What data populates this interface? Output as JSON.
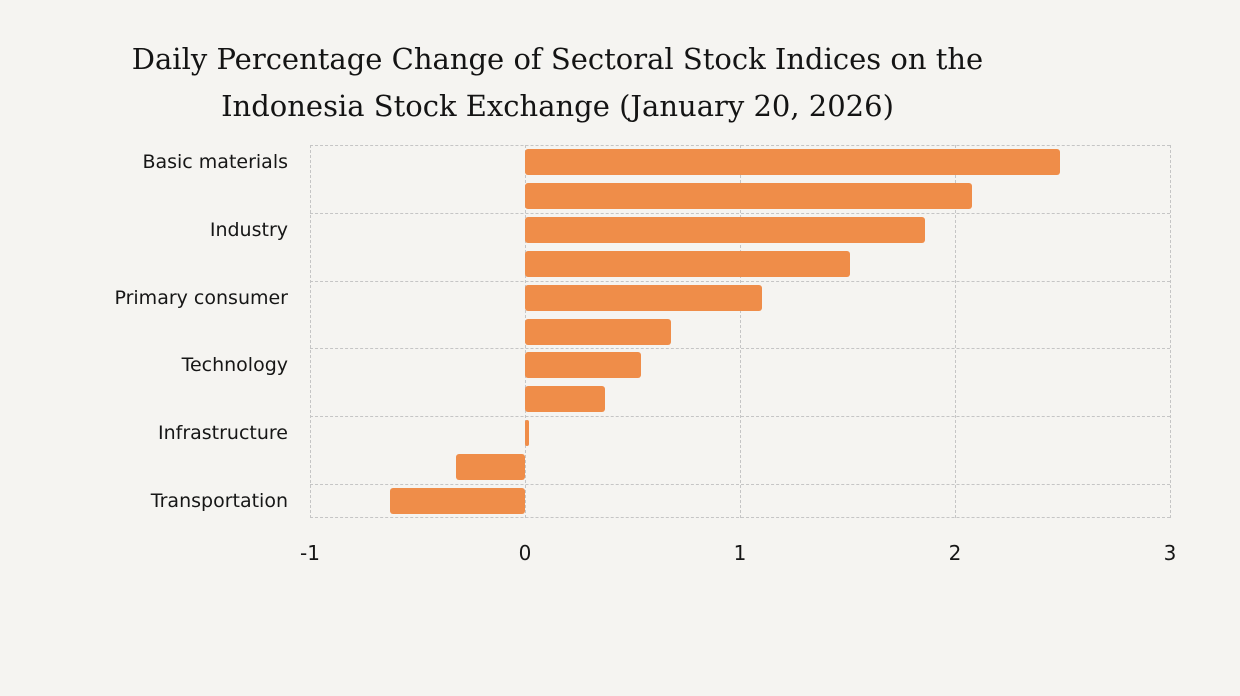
{
  "page": {
    "background_color": "#f5f4f1"
  },
  "chart_data": {
    "type": "bar",
    "orientation": "horizontal",
    "title_line1": "Daily Percentage Change of Sectoral Stock Indices on the",
    "title_line2": "Indonesia Stock Exchange (January 20, 2026)",
    "xlabel": "",
    "ylabel": "",
    "xlim": [
      -1,
      3
    ],
    "x_ticks": [
      {
        "label": "-1",
        "value": -1
      },
      {
        "label": "0",
        "value": 0
      },
      {
        "label": "1",
        "value": 1
      },
      {
        "label": "2",
        "value": 2
      },
      {
        "label": "3",
        "value": 3
      }
    ],
    "bars": [
      {
        "label": "Basic materials",
        "value": 2.49
      },
      {
        "label": "",
        "value": 2.08
      },
      {
        "label": "Industry",
        "value": 1.86
      },
      {
        "label": "",
        "value": 1.51
      },
      {
        "label": "Primary consumer",
        "value": 1.1
      },
      {
        "label": "",
        "value": 0.68
      },
      {
        "label": "Technology",
        "value": 0.54
      },
      {
        "label": "",
        "value": 0.37
      },
      {
        "label": "Infrastructure",
        "value": 0.02
      },
      {
        "label": "",
        "value": -0.32
      },
      {
        "label": "Transportation",
        "value": -0.63
      }
    ],
    "bar_color": "#ef8d49",
    "grid": {
      "color": "#c5c5c5",
      "style": "dashed",
      "horizontal_every_n_bars": 2
    },
    "legend": "none"
  }
}
